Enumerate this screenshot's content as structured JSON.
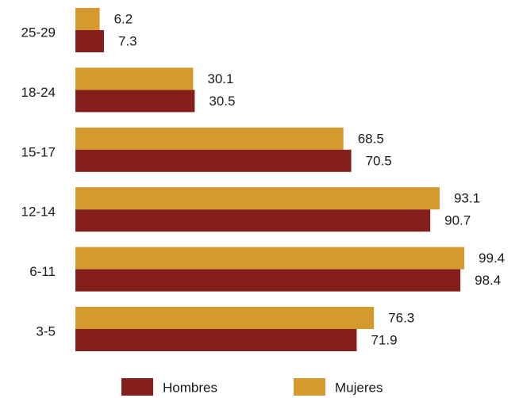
{
  "chart_data": {
    "type": "bar",
    "orientation": "horizontal",
    "categories": [
      "25-29",
      "18-24",
      "15-17",
      "12-14",
      "6-11",
      "3-5"
    ],
    "series": [
      {
        "name": "Mujeres",
        "color": "#d49a2e",
        "values": [
          6.2,
          30.1,
          68.5,
          93.1,
          99.4,
          76.3
        ]
      },
      {
        "name": "Hombres",
        "color": "#841f1b",
        "values": [
          7.3,
          30.5,
          70.5,
          90.7,
          98.4,
          71.9
        ]
      }
    ],
    "value_labels": {
      "Mujeres": [
        "6.2",
        "30.1",
        "68.5",
        "93.1",
        "99.4",
        "76.3"
      ],
      "Hombres": [
        "7.3",
        "30.5",
        "70.5",
        "90.7",
        "98.4",
        "71.9"
      ]
    },
    "legend": {
      "position": "bottom",
      "items": [
        {
          "label": "Hombres",
          "color": "#841f1b"
        },
        {
          "label": "Mujeres",
          "color": "#d49a2e"
        }
      ]
    },
    "xlim": [
      0,
      100
    ],
    "grid": false,
    "axes_visible": false
  }
}
